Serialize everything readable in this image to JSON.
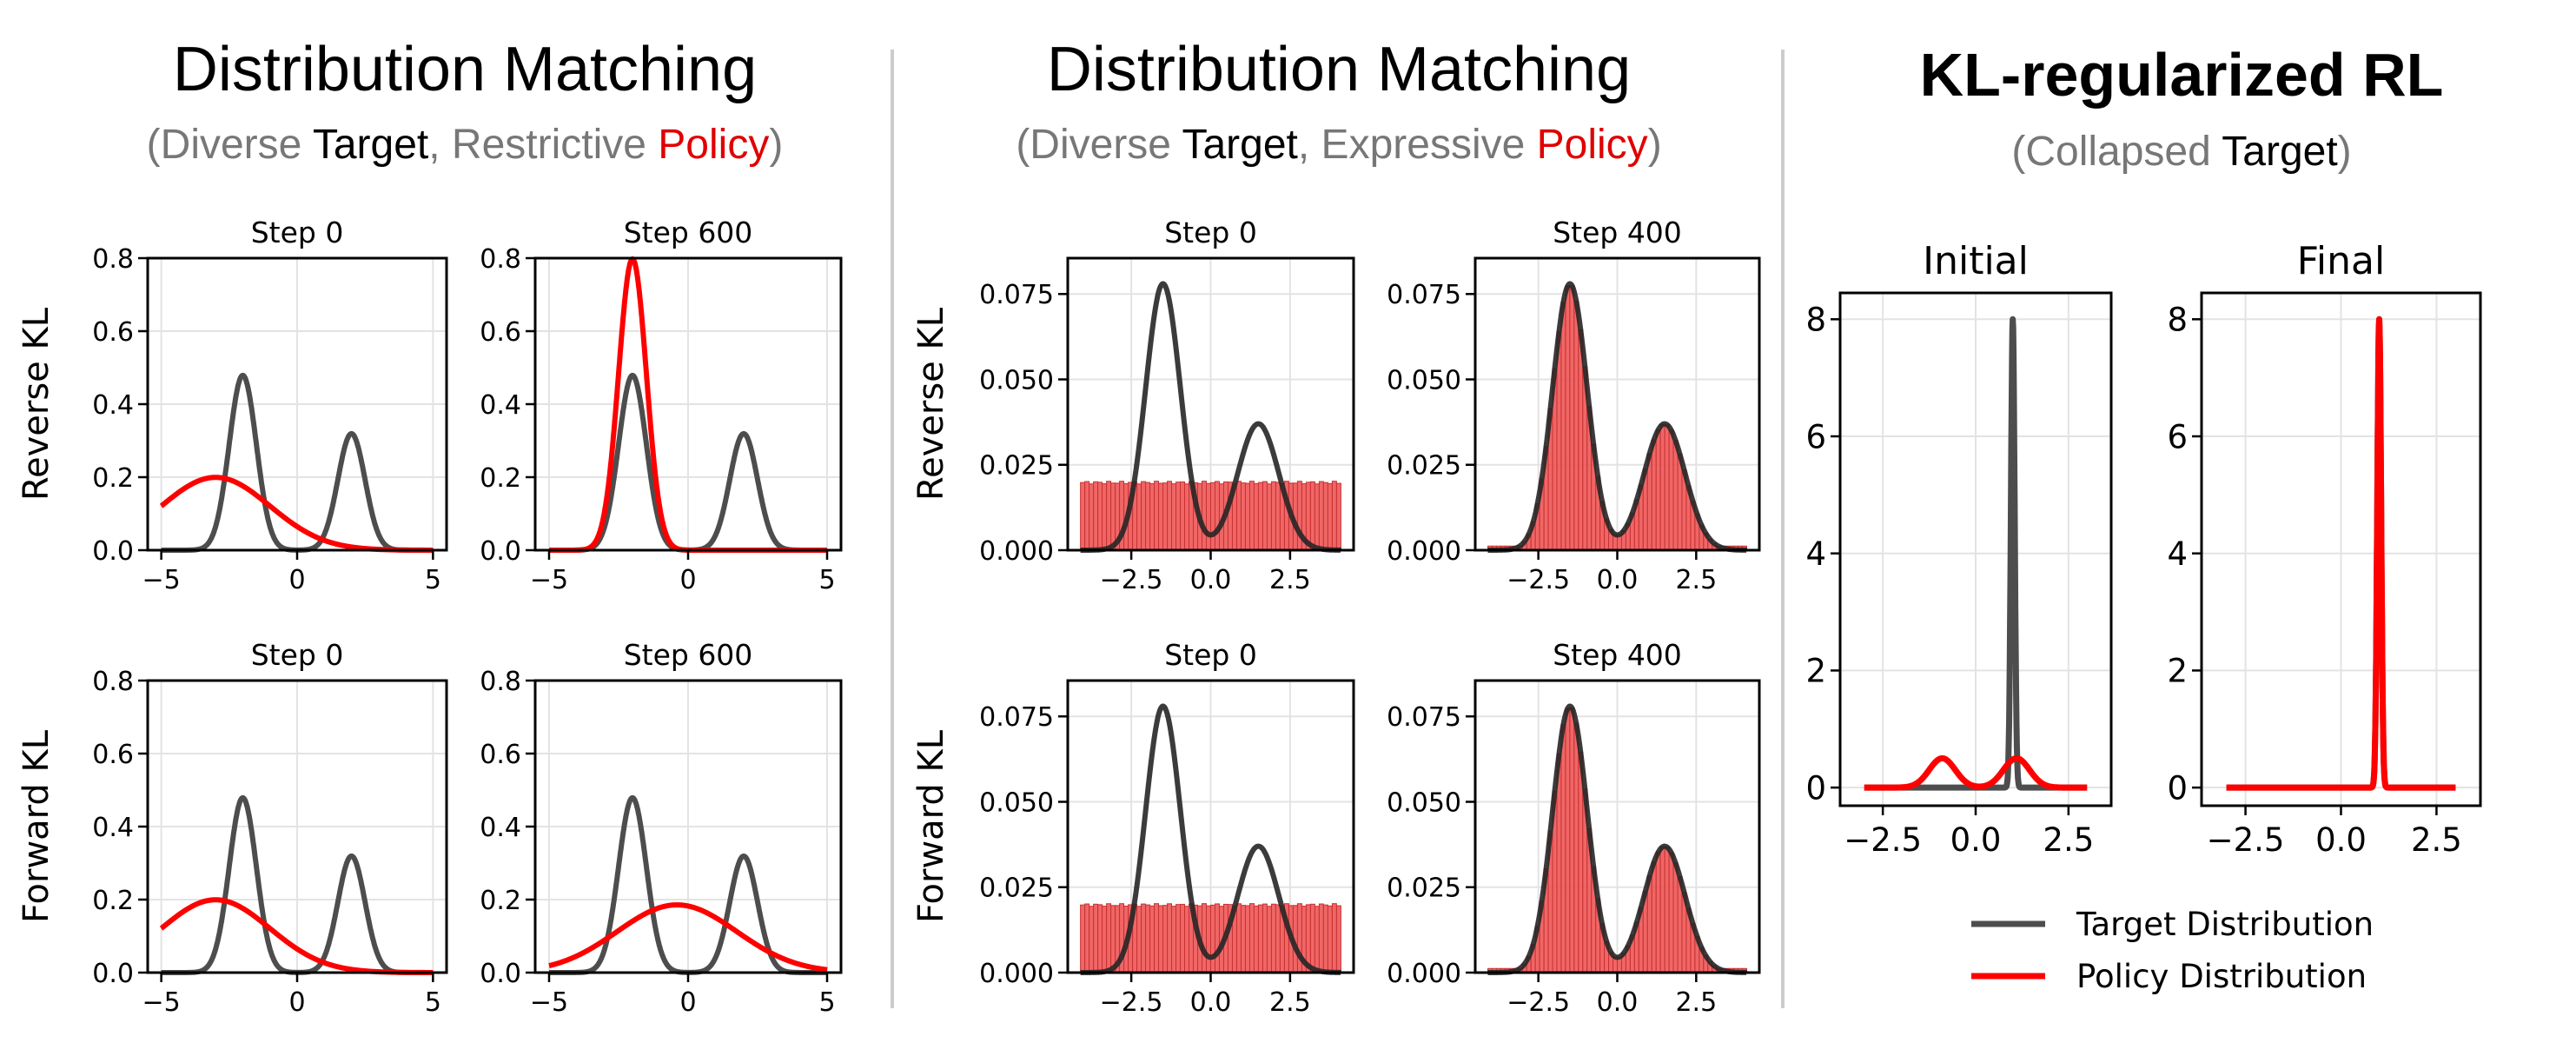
{
  "colors": {
    "target": "#4d4d4d",
    "target_dark": "#262626",
    "policy": "#ff0000",
    "bar_fill": "#ee5555",
    "bar_edge": "#c83232",
    "muted": "#777777",
    "divider": "#cccccc",
    "grid": "#e3e3e3"
  },
  "groups": [
    {
      "title": "Distribution Matching",
      "subtitle": {
        "open": "(",
        "a": "Diverse ",
        "b": "Target",
        "c": ", Restrictive ",
        "d": "Policy",
        "close": ")"
      }
    },
    {
      "title": "Distribution Matching",
      "subtitle": {
        "open": "(",
        "a": "Diverse ",
        "b": "Target",
        "c": ", Expressive ",
        "d": "Policy",
        "close": ")"
      }
    },
    {
      "title": "KL-regularized RL",
      "subtitle": {
        "open": "(",
        "a": "Collapsed ",
        "b": "Target",
        "c": "",
        "d": "",
        "close": ")"
      }
    }
  ],
  "legend": [
    {
      "label": "Target Distribution",
      "color": "#4d4d4d"
    },
    {
      "label": "Policy Distribution",
      "color": "#ff0000"
    }
  ],
  "chart_data": [
    {
      "type": "line",
      "group": 0,
      "title": "Step 0",
      "ylabel": "Reverse KL",
      "xlim": [
        -5.5,
        5.5
      ],
      "ylim": [
        0,
        0.8
      ],
      "xticks": [
        -5,
        0,
        5
      ],
      "xticklabels": [
        "−5",
        "0",
        "5"
      ],
      "yticks": [
        0,
        0.2,
        0.4,
        0.6,
        0.8
      ],
      "yticklabels": [
        "0.0",
        "0.2",
        "0.4",
        "0.6",
        "0.8"
      ],
      "grid": true,
      "series": [
        {
          "name": "Target Distribution",
          "x_range": [
            -5,
            5
          ],
          "components": [
            {
              "weight": 0.6,
              "mean": -2,
              "std": 0.5
            },
            {
              "weight": 0.4,
              "mean": 2,
              "std": 0.5
            }
          ]
        },
        {
          "name": "Policy Distribution",
          "x_range": [
            -5,
            5
          ],
          "components": [
            {
              "weight": 1,
              "mean": -3,
              "std": 2
            }
          ]
        }
      ]
    },
    {
      "type": "line",
      "group": 0,
      "title": "Step 600",
      "ylabel": "",
      "xlim": [
        -5.5,
        5.5
      ],
      "ylim": [
        0,
        0.8
      ],
      "xticks": [
        -5,
        0,
        5
      ],
      "xticklabels": [
        "−5",
        "0",
        "5"
      ],
      "yticks": [
        0,
        0.2,
        0.4,
        0.6,
        0.8
      ],
      "yticklabels": [
        "0.0",
        "0.2",
        "0.4",
        "0.6",
        "0.8"
      ],
      "grid": true,
      "series": [
        {
          "name": "Target Distribution",
          "x_range": [
            -5,
            5
          ],
          "components": [
            {
              "weight": 0.6,
              "mean": -2,
              "std": 0.5
            },
            {
              "weight": 0.4,
              "mean": 2,
              "std": 0.5
            }
          ]
        },
        {
          "name": "Policy Distribution",
          "x_range": [
            -5,
            5
          ],
          "components": [
            {
              "weight": 1,
              "mean": -2,
              "std": 0.5
            }
          ]
        }
      ]
    },
    {
      "type": "line",
      "group": 0,
      "title": "Step 0",
      "ylabel": "Forward KL",
      "xlim": [
        -5.5,
        5.5
      ],
      "ylim": [
        0,
        0.8
      ],
      "xticks": [
        -5,
        0,
        5
      ],
      "xticklabels": [
        "−5",
        "0",
        "5"
      ],
      "yticks": [
        0,
        0.2,
        0.4,
        0.6,
        0.8
      ],
      "yticklabels": [
        "0.0",
        "0.2",
        "0.4",
        "0.6",
        "0.8"
      ],
      "grid": true,
      "series": [
        {
          "name": "Target Distribution",
          "x_range": [
            -5,
            5
          ],
          "components": [
            {
              "weight": 0.6,
              "mean": -2,
              "std": 0.5
            },
            {
              "weight": 0.4,
              "mean": 2,
              "std": 0.5
            }
          ]
        },
        {
          "name": "Policy Distribution",
          "x_range": [
            -5,
            5
          ],
          "components": [
            {
              "weight": 1,
              "mean": -3,
              "std": 2
            }
          ]
        }
      ]
    },
    {
      "type": "line",
      "group": 0,
      "title": "Step 600",
      "ylabel": "",
      "xlim": [
        -5.5,
        5.5
      ],
      "ylim": [
        0,
        0.8
      ],
      "xticks": [
        -5,
        0,
        5
      ],
      "xticklabels": [
        "−5",
        "0",
        "5"
      ],
      "yticks": [
        0,
        0.2,
        0.4,
        0.6,
        0.8
      ],
      "yticklabels": [
        "0.0",
        "0.2",
        "0.4",
        "0.6",
        "0.8"
      ],
      "grid": true,
      "series": [
        {
          "name": "Target Distribution",
          "x_range": [
            -5,
            5
          ],
          "components": [
            {
              "weight": 0.6,
              "mean": -2,
              "std": 0.5
            },
            {
              "weight": 0.4,
              "mean": 2,
              "std": 0.5
            }
          ]
        },
        {
          "name": "Policy Distribution",
          "x_range": [
            -5,
            5
          ],
          "components": [
            {
              "weight": 1,
              "mean": -0.4,
              "std": 2.15
            }
          ]
        }
      ]
    },
    {
      "type": "bar+line",
      "group": 1,
      "title": "Step 0",
      "ylabel": "Reverse KL",
      "xlim": [
        -4.5,
        4.5
      ],
      "ylim": [
        0,
        0.0855
      ],
      "xticks": [
        -2.5,
        0,
        2.5
      ],
      "xticklabels": [
        "−2.5",
        "0.0",
        "2.5"
      ],
      "yticks": [
        0,
        0.025,
        0.05,
        0.075
      ],
      "yticklabels": [
        "0.000",
        "0.025",
        "0.050",
        "0.075"
      ],
      "grid": true,
      "histogram": {
        "name": "Policy Distribution",
        "bin_range": [
          -4.1,
          4.1
        ],
        "bins": 60,
        "shape": "uniform",
        "value": 0.0198
      },
      "series": [
        {
          "name": "Target Distribution",
          "x_range": [
            -4.1,
            4.1
          ],
          "amplitude_components": [
            {
              "height": 0.078,
              "mean": -1.5,
              "std": 0.55
            },
            {
              "height": 0.037,
              "mean": 1.5,
              "std": 0.65
            }
          ]
        }
      ]
    },
    {
      "type": "bar+line",
      "group": 1,
      "title": "Step 400",
      "ylabel": "",
      "xlim": [
        -4.5,
        4.5
      ],
      "ylim": [
        0,
        0.0855
      ],
      "xticks": [
        -2.5,
        0,
        2.5
      ],
      "xticklabels": [
        "−2.5",
        "0.0",
        "2.5"
      ],
      "yticks": [
        0,
        0.025,
        0.05,
        0.075
      ],
      "yticklabels": [
        "0.000",
        "0.025",
        "0.050",
        "0.075"
      ],
      "grid": true,
      "histogram": {
        "name": "Policy Distribution",
        "bin_range": [
          -4.1,
          4.1
        ],
        "bins": 60,
        "shape": "matches target"
      },
      "series": [
        {
          "name": "Target Distribution",
          "x_range": [
            -4.1,
            4.1
          ],
          "amplitude_components": [
            {
              "height": 0.078,
              "mean": -1.5,
              "std": 0.55
            },
            {
              "height": 0.037,
              "mean": 1.5,
              "std": 0.65
            }
          ]
        }
      ]
    },
    {
      "type": "bar+line",
      "group": 1,
      "title": "Step 0",
      "ylabel": "Forward KL",
      "xlim": [
        -4.5,
        4.5
      ],
      "ylim": [
        0,
        0.0855
      ],
      "xticks": [
        -2.5,
        0,
        2.5
      ],
      "xticklabels": [
        "−2.5",
        "0.0",
        "2.5"
      ],
      "yticks": [
        0,
        0.025,
        0.05,
        0.075
      ],
      "yticklabels": [
        "0.000",
        "0.025",
        "0.050",
        "0.075"
      ],
      "grid": true,
      "histogram": {
        "name": "Policy Distribution",
        "bin_range": [
          -4.1,
          4.1
        ],
        "bins": 60,
        "shape": "uniform",
        "value": 0.0198
      },
      "series": [
        {
          "name": "Target Distribution",
          "x_range": [
            -4.1,
            4.1
          ],
          "amplitude_components": [
            {
              "height": 0.078,
              "mean": -1.5,
              "std": 0.55
            },
            {
              "height": 0.037,
              "mean": 1.5,
              "std": 0.65
            }
          ]
        }
      ]
    },
    {
      "type": "bar+line",
      "group": 1,
      "title": "Step 400",
      "ylabel": "",
      "xlim": [
        -4.5,
        4.5
      ],
      "ylim": [
        0,
        0.0855
      ],
      "xticks": [
        -2.5,
        0,
        2.5
      ],
      "xticklabels": [
        "−2.5",
        "0.0",
        "2.5"
      ],
      "yticks": [
        0,
        0.025,
        0.05,
        0.075
      ],
      "yticklabels": [
        "0.000",
        "0.025",
        "0.050",
        "0.075"
      ],
      "grid": true,
      "histogram": {
        "name": "Policy Distribution",
        "bin_range": [
          -4.1,
          4.1
        ],
        "bins": 60,
        "shape": "matches target"
      },
      "series": [
        {
          "name": "Target Distribution",
          "x_range": [
            -4.1,
            4.1
          ],
          "amplitude_components": [
            {
              "height": 0.078,
              "mean": -1.5,
              "std": 0.55
            },
            {
              "height": 0.037,
              "mean": 1.5,
              "std": 0.65
            }
          ]
        }
      ]
    },
    {
      "type": "line",
      "group": 2,
      "title": "Initial",
      "ylabel": "",
      "xlim": [
        -3.65,
        3.65
      ],
      "ylim": [
        -0.31,
        8.45
      ],
      "xticks": [
        -2.5,
        0,
        2.5
      ],
      "xticklabels": [
        "−2.5",
        "0.0",
        "2.5"
      ],
      "yticks": [
        0,
        2,
        4,
        6,
        8
      ],
      "yticklabels": [
        "0",
        "2",
        "4",
        "6",
        "8"
      ],
      "grid": true,
      "series": [
        {
          "name": "Target Distribution",
          "x_range": [
            -3,
            3
          ],
          "amplitude_components": [
            {
              "height": 8,
              "mean": 1.0,
              "std": 0.05
            }
          ]
        },
        {
          "name": "Policy Distribution",
          "x_range": [
            -3,
            3
          ],
          "amplitude_components": [
            {
              "height": 0.5,
              "mean": -0.9,
              "std": 0.35
            },
            {
              "height": 0.5,
              "mean": 1.1,
              "std": 0.35
            }
          ]
        }
      ]
    },
    {
      "type": "line",
      "group": 2,
      "title": "Final",
      "ylabel": "",
      "xlim": [
        -3.65,
        3.65
      ],
      "ylim": [
        -0.31,
        8.45
      ],
      "xticks": [
        -2.5,
        0,
        2.5
      ],
      "xticklabels": [
        "−2.5",
        "0.0",
        "2.5"
      ],
      "yticks": [
        0,
        2,
        4,
        6,
        8
      ],
      "yticklabels": [
        "0",
        "2",
        "4",
        "6",
        "8"
      ],
      "grid": true,
      "series": [
        {
          "name": "Target Distribution",
          "x_range": [
            -3,
            3
          ],
          "amplitude_components": [
            {
              "height": 8,
              "mean": 1.0,
              "std": 0.05
            }
          ]
        },
        {
          "name": "Policy Distribution",
          "x_range": [
            -3,
            3
          ],
          "amplitude_components": [
            {
              "height": 8,
              "mean": 1.0,
              "std": 0.05
            }
          ]
        }
      ]
    }
  ]
}
